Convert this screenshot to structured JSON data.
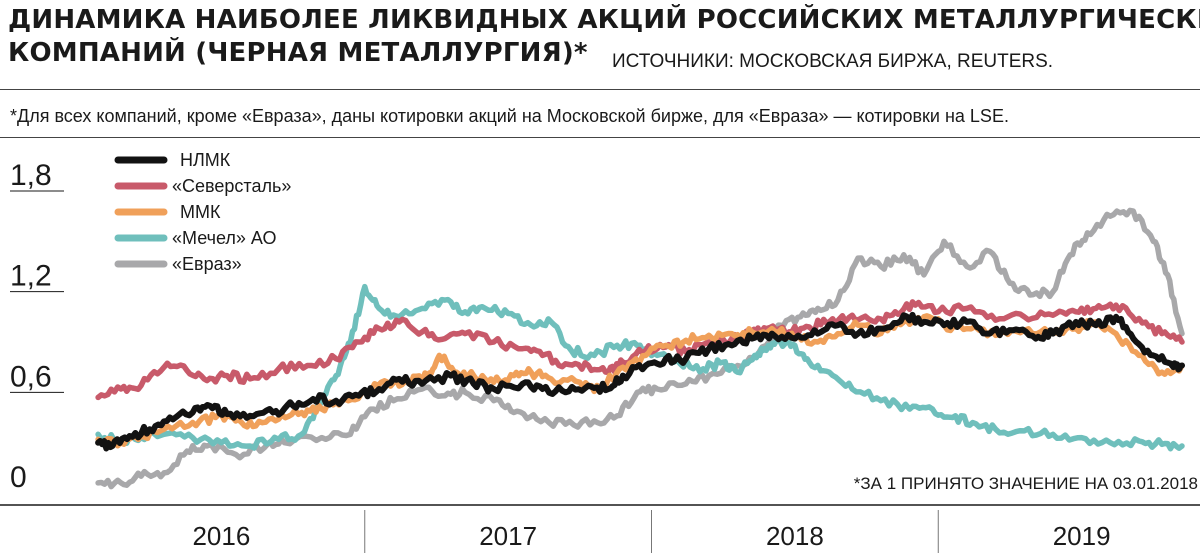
{
  "header": {
    "title_line1": "ДИНАМИКА НАИБОЛЕЕ ЛИКВИДНЫХ АКЦИЙ РОССИЙСКИХ МЕТАЛЛУРГИЧЕСКИХ",
    "title_line2": "КОМПАНИЙ (ЧЕРНАЯ МЕТАЛЛУРГИЯ)*",
    "sources": "ИСТОЧНИКИ: МОСКОВСКАЯ БИРЖА, REUTERS.",
    "footnote": "*Для всех компаний, кроме «Евраза», даны котировки акций на Московской бирже, для «Евраза» — котировки на LSE."
  },
  "chart_data": {
    "type": "line",
    "note": "*ЗА 1 ПРИНЯТО ЗНАЧЕНИЕ НА 03.01.2018",
    "ylim": [
      0,
      1.8
    ],
    "yticks": [
      {
        "value": 0,
        "label": "0"
      },
      {
        "value": 0.6,
        "label": "0,6"
      },
      {
        "value": 1.2,
        "label": "1,2"
      },
      {
        "value": 1.8,
        "label": "1,8"
      }
    ],
    "xlim": [
      2015.6,
      2019.45
    ],
    "year_labels": [
      {
        "label": "2016",
        "center": 2016.1
      },
      {
        "label": "2017",
        "center": 2017.1
      },
      {
        "label": "2018",
        "center": 2018.1
      },
      {
        "label": "2019",
        "center": 2019.1
      }
    ],
    "year_separators": [
      2016.6,
      2017.6,
      2018.6
    ],
    "series": [
      {
        "name": "«Евраз»",
        "color": "#a8a8aa",
        "points": [
          [
            2015.67,
            0.06
          ],
          [
            2015.75,
            0.06
          ],
          [
            2015.82,
            0.1
          ],
          [
            2015.9,
            0.12
          ],
          [
            2015.98,
            0.25
          ],
          [
            2016.05,
            0.28
          ],
          [
            2016.15,
            0.23
          ],
          [
            2016.25,
            0.27
          ],
          [
            2016.32,
            0.3
          ],
          [
            2016.45,
            0.33
          ],
          [
            2016.55,
            0.35
          ],
          [
            2016.62,
            0.5
          ],
          [
            2016.7,
            0.55
          ],
          [
            2016.8,
            0.62
          ],
          [
            2016.88,
            0.58
          ],
          [
            2016.95,
            0.6
          ],
          [
            2017.05,
            0.55
          ],
          [
            2017.12,
            0.48
          ],
          [
            2017.2,
            0.44
          ],
          [
            2017.3,
            0.41
          ],
          [
            2017.4,
            0.43
          ],
          [
            2017.48,
            0.46
          ],
          [
            2017.55,
            0.6
          ],
          [
            2017.62,
            0.62
          ],
          [
            2017.72,
            0.65
          ],
          [
            2017.8,
            0.7
          ],
          [
            2017.9,
            0.76
          ],
          [
            2018.0,
            0.88
          ],
          [
            2018.05,
            1.0
          ],
          [
            2018.12,
            1.05
          ],
          [
            2018.18,
            1.1
          ],
          [
            2018.25,
            1.15
          ],
          [
            2018.32,
            1.4
          ],
          [
            2018.4,
            1.35
          ],
          [
            2018.48,
            1.42
          ],
          [
            2018.55,
            1.3
          ],
          [
            2018.62,
            1.5
          ],
          [
            2018.7,
            1.35
          ],
          [
            2018.78,
            1.44
          ],
          [
            2018.85,
            1.25
          ],
          [
            2018.92,
            1.18
          ],
          [
            2019.0,
            1.2
          ],
          [
            2019.06,
            1.42
          ],
          [
            2019.12,
            1.55
          ],
          [
            2019.2,
            1.65
          ],
          [
            2019.28,
            1.68
          ],
          [
            2019.35,
            1.5
          ],
          [
            2019.4,
            1.3
          ],
          [
            2019.45,
            0.95
          ]
        ]
      },
      {
        "name": "«Мечел» АО",
        "color": "#6fbfbc",
        "points": [
          [
            2015.67,
            0.35
          ],
          [
            2015.75,
            0.3
          ],
          [
            2015.82,
            0.33
          ],
          [
            2015.9,
            0.35
          ],
          [
            2016.0,
            0.33
          ],
          [
            2016.1,
            0.3
          ],
          [
            2016.2,
            0.28
          ],
          [
            2016.3,
            0.32
          ],
          [
            2016.38,
            0.35
          ],
          [
            2016.45,
            0.55
          ],
          [
            2016.5,
            0.7
          ],
          [
            2016.55,
            0.9
          ],
          [
            2016.6,
            1.23
          ],
          [
            2016.65,
            1.1
          ],
          [
            2016.72,
            1.05
          ],
          [
            2016.8,
            1.1
          ],
          [
            2016.88,
            1.15
          ],
          [
            2016.95,
            1.08
          ],
          [
            2017.02,
            1.1
          ],
          [
            2017.1,
            1.07
          ],
          [
            2017.18,
            1.0
          ],
          [
            2017.25,
            1.02
          ],
          [
            2017.32,
            0.85
          ],
          [
            2017.4,
            0.82
          ],
          [
            2017.48,
            0.88
          ],
          [
            2017.55,
            0.88
          ],
          [
            2017.62,
            0.82
          ],
          [
            2017.7,
            0.77
          ],
          [
            2017.78,
            0.74
          ],
          [
            2017.85,
            0.78
          ],
          [
            2017.9,
            0.72
          ],
          [
            2017.96,
            0.82
          ],
          [
            2018.0,
            0.85
          ],
          [
            2018.05,
            0.9
          ],
          [
            2018.1,
            0.88
          ],
          [
            2018.15,
            0.78
          ],
          [
            2018.22,
            0.72
          ],
          [
            2018.3,
            0.62
          ],
          [
            2018.4,
            0.55
          ],
          [
            2018.5,
            0.5
          ],
          [
            2018.58,
            0.5
          ],
          [
            2018.65,
            0.45
          ],
          [
            2018.72,
            0.42
          ],
          [
            2018.8,
            0.38
          ],
          [
            2018.9,
            0.37
          ],
          [
            2019.0,
            0.35
          ],
          [
            2019.1,
            0.33
          ],
          [
            2019.2,
            0.3
          ],
          [
            2019.3,
            0.31
          ],
          [
            2019.38,
            0.29
          ],
          [
            2019.45,
            0.28
          ]
        ]
      },
      {
        "name": "«Северсталь»",
        "color": "#c85a6a",
        "points": [
          [
            2015.67,
            0.57
          ],
          [
            2015.75,
            0.62
          ],
          [
            2015.82,
            0.64
          ],
          [
            2015.9,
            0.75
          ],
          [
            2015.98,
            0.73
          ],
          [
            2016.05,
            0.67
          ],
          [
            2016.12,
            0.7
          ],
          [
            2016.2,
            0.68
          ],
          [
            2016.3,
            0.74
          ],
          [
            2016.4,
            0.76
          ],
          [
            2016.5,
            0.8
          ],
          [
            2016.58,
            0.9
          ],
          [
            2016.65,
            0.98
          ],
          [
            2016.72,
            1.02
          ],
          [
            2016.8,
            0.96
          ],
          [
            2016.88,
            0.92
          ],
          [
            2016.95,
            0.95
          ],
          [
            2017.05,
            0.9
          ],
          [
            2017.15,
            0.86
          ],
          [
            2017.22,
            0.82
          ],
          [
            2017.3,
            0.77
          ],
          [
            2017.38,
            0.76
          ],
          [
            2017.45,
            0.72
          ],
          [
            2017.5,
            0.78
          ],
          [
            2017.58,
            0.85
          ],
          [
            2017.65,
            0.87
          ],
          [
            2017.72,
            0.84
          ],
          [
            2017.8,
            0.9
          ],
          [
            2017.88,
            0.92
          ],
          [
            2017.95,
            0.95
          ],
          [
            2018.0,
            0.98
          ],
          [
            2018.08,
            0.96
          ],
          [
            2018.15,
            0.99
          ],
          [
            2018.22,
            1.02
          ],
          [
            2018.3,
            1.06
          ],
          [
            2018.38,
            1.02
          ],
          [
            2018.45,
            1.08
          ],
          [
            2018.52,
            1.12
          ],
          [
            2018.6,
            1.08
          ],
          [
            2018.7,
            1.1
          ],
          [
            2018.8,
            1.03
          ],
          [
            2018.9,
            1.05
          ],
          [
            2019.0,
            1.06
          ],
          [
            2019.08,
            1.08
          ],
          [
            2019.15,
            1.1
          ],
          [
            2019.22,
            1.12
          ],
          [
            2019.3,
            1.04
          ],
          [
            2019.38,
            0.95
          ],
          [
            2019.45,
            0.9
          ]
        ]
      },
      {
        "name": "ММК",
        "color": "#f0a05a",
        "points": [
          [
            2015.67,
            0.32
          ],
          [
            2015.75,
            0.3
          ],
          [
            2015.82,
            0.34
          ],
          [
            2015.9,
            0.38
          ],
          [
            2016.0,
            0.42
          ],
          [
            2016.08,
            0.45
          ],
          [
            2016.15,
            0.43
          ],
          [
            2016.22,
            0.4
          ],
          [
            2016.3,
            0.44
          ],
          [
            2016.38,
            0.48
          ],
          [
            2016.45,
            0.5
          ],
          [
            2016.52,
            0.55
          ],
          [
            2016.6,
            0.6
          ],
          [
            2016.68,
            0.66
          ],
          [
            2016.75,
            0.66
          ],
          [
            2016.82,
            0.7
          ],
          [
            2016.86,
            0.82
          ],
          [
            2016.92,
            0.72
          ],
          [
            2016.98,
            0.7
          ],
          [
            2017.05,
            0.66
          ],
          [
            2017.12,
            0.7
          ],
          [
            2017.18,
            0.72
          ],
          [
            2017.25,
            0.68
          ],
          [
            2017.35,
            0.66
          ],
          [
            2017.42,
            0.62
          ],
          [
            2017.5,
            0.75
          ],
          [
            2017.58,
            0.82
          ],
          [
            2017.65,
            0.88
          ],
          [
            2017.72,
            0.91
          ],
          [
            2017.8,
            0.94
          ],
          [
            2017.88,
            0.95
          ],
          [
            2017.95,
            0.96
          ],
          [
            2018.02,
            0.98
          ],
          [
            2018.1,
            0.92
          ],
          [
            2018.18,
            0.9
          ],
          [
            2018.25,
            0.95
          ],
          [
            2018.32,
            1.0
          ],
          [
            2018.4,
            0.95
          ],
          [
            2018.48,
            1.02
          ],
          [
            2018.55,
            1.05
          ],
          [
            2018.62,
            1.0
          ],
          [
            2018.7,
            0.98
          ],
          [
            2018.8,
            0.94
          ],
          [
            2018.9,
            0.97
          ],
          [
            2019.0,
            0.96
          ],
          [
            2019.08,
            0.98
          ],
          [
            2019.15,
            1.02
          ],
          [
            2019.22,
            0.95
          ],
          [
            2019.3,
            0.82
          ],
          [
            2019.38,
            0.72
          ],
          [
            2019.45,
            0.76
          ]
        ]
      },
      {
        "name": "НЛМК",
        "color": "#121212",
        "points": [
          [
            2015.67,
            0.3
          ],
          [
            2015.72,
            0.28
          ],
          [
            2015.78,
            0.34
          ],
          [
            2015.85,
            0.38
          ],
          [
            2015.92,
            0.45
          ],
          [
            2016.0,
            0.48
          ],
          [
            2016.06,
            0.52
          ],
          [
            2016.12,
            0.47
          ],
          [
            2016.2,
            0.46
          ],
          [
            2016.28,
            0.48
          ],
          [
            2016.35,
            0.52
          ],
          [
            2016.42,
            0.56
          ],
          [
            2016.5,
            0.55
          ],
          [
            2016.58,
            0.58
          ],
          [
            2016.65,
            0.62
          ],
          [
            2016.72,
            0.68
          ],
          [
            2016.8,
            0.65
          ],
          [
            2016.9,
            0.7
          ],
          [
            2016.98,
            0.65
          ],
          [
            2017.05,
            0.62
          ],
          [
            2017.15,
            0.65
          ],
          [
            2017.22,
            0.62
          ],
          [
            2017.3,
            0.6
          ],
          [
            2017.38,
            0.64
          ],
          [
            2017.45,
            0.62
          ],
          [
            2017.5,
            0.7
          ],
          [
            2017.58,
            0.76
          ],
          [
            2017.65,
            0.8
          ],
          [
            2017.72,
            0.8
          ],
          [
            2017.8,
            0.86
          ],
          [
            2017.88,
            0.88
          ],
          [
            2017.95,
            0.92
          ],
          [
            2018.02,
            0.95
          ],
          [
            2018.1,
            0.92
          ],
          [
            2018.18,
            0.95
          ],
          [
            2018.25,
            1.0
          ],
          [
            2018.32,
            0.95
          ],
          [
            2018.4,
            0.98
          ],
          [
            2018.48,
            1.06
          ],
          [
            2018.55,
            1.02
          ],
          [
            2018.62,
            1.0
          ],
          [
            2018.7,
            1.02
          ],
          [
            2018.78,
            0.95
          ],
          [
            2018.86,
            0.97
          ],
          [
            2018.94,
            0.92
          ],
          [
            2019.0,
            0.95
          ],
          [
            2019.08,
            1.02
          ],
          [
            2019.15,
            1.0
          ],
          [
            2019.22,
            1.05
          ],
          [
            2019.28,
            0.92
          ],
          [
            2019.35,
            0.82
          ],
          [
            2019.42,
            0.75
          ],
          [
            2019.45,
            0.76
          ]
        ]
      }
    ],
    "legend": {
      "placement": "top-left",
      "order": [
        "НЛМК",
        "«Северсталь»",
        "ММК",
        "«Мечел» АО",
        "«Евраз»"
      ]
    }
  }
}
